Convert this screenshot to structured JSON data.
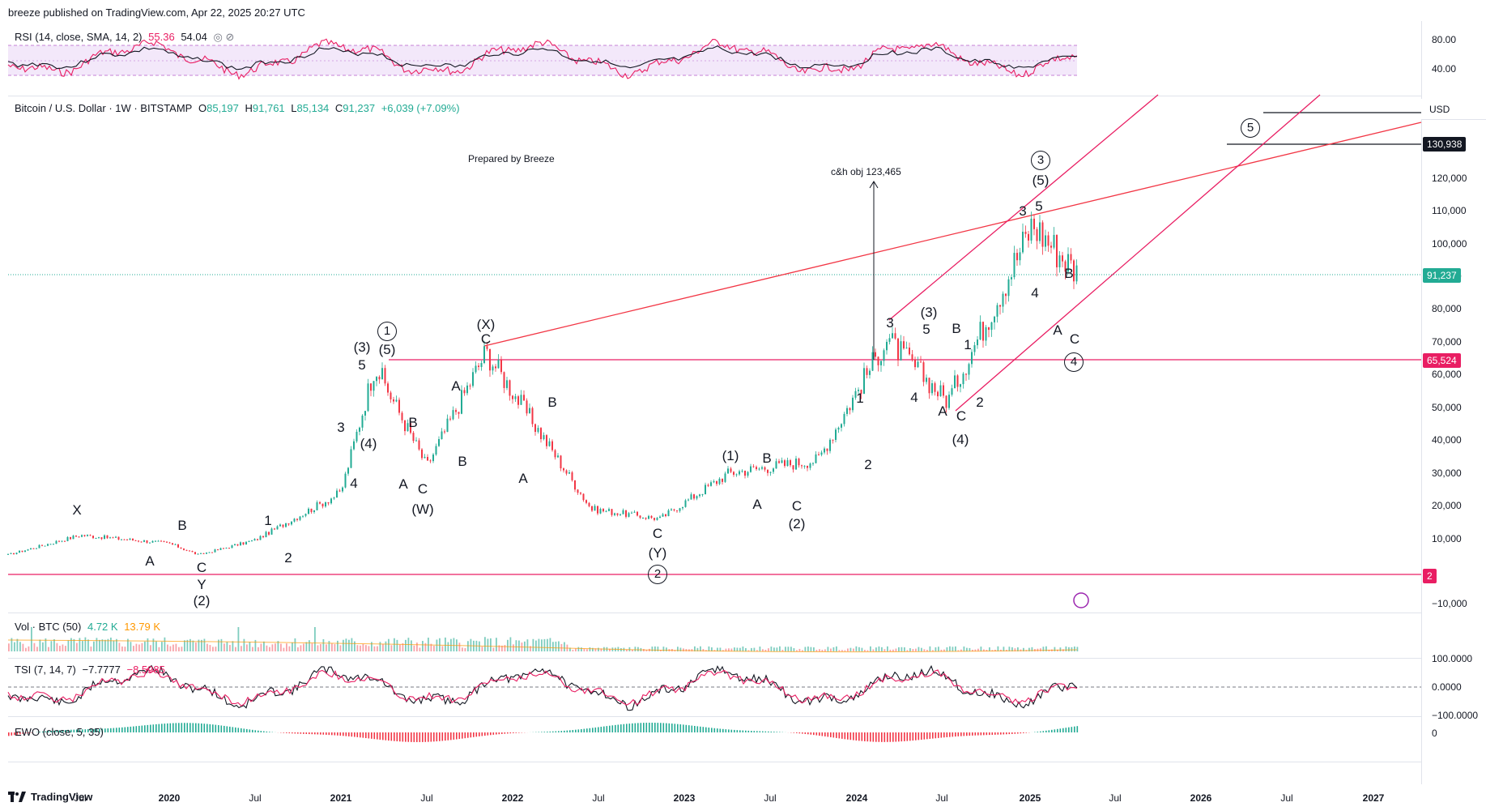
{
  "header": {
    "published": "breeze published on TradingView.com, Apr 22, 2025 20:27 UTC"
  },
  "rsi": {
    "label": "RSI (14, close, SMA, 14, 2)",
    "value": "55.36",
    "sma": "54.04",
    "icons": "◎ ⊘",
    "ticks": [
      "80.00",
      "40.00"
    ]
  },
  "main": {
    "symbol": "Bitcoin / U.S. Dollar · 1W · BITSTAMP",
    "o": "85,197",
    "h": "91,761",
    "l": "85,134",
    "c": "91,237",
    "change": "+6,039 (+7.09%)",
    "currency": "USD",
    "price_ticks": [
      "120,000",
      "110,000",
      "100,000",
      "90,000",
      "80,000",
      "70,000",
      "60,000",
      "50,000",
      "40,000",
      "30,000",
      "20,000",
      "10,000",
      "−10,000"
    ],
    "tag_130938": "130,938",
    "tag_91237": "91,237",
    "tag_65524": "65,524",
    "tag_2": "2",
    "note_prepared": "Prepared by Breeze",
    "note_ch": "c&h obj 123,465"
  },
  "volume": {
    "label": "Vol · BTC (50)",
    "v1": "4.72 K",
    "v2": "13.79 K"
  },
  "tsi": {
    "label": "TSI (7, 14, 7)",
    "v1": "−7.7777",
    "v2": "−8.5985",
    "ticks": [
      "100.0000",
      "0.0000",
      "−100.0000"
    ]
  },
  "ewo": {
    "label": "EWO (close, 5, 35)",
    "ticks": [
      "0"
    ]
  },
  "xaxis": [
    {
      "t": "Jul",
      "b": false
    },
    {
      "t": "2020",
      "b": true
    },
    {
      "t": "Jul",
      "b": false
    },
    {
      "t": "2021",
      "b": true
    },
    {
      "t": "Jul",
      "b": false
    },
    {
      "t": "2022",
      "b": true
    },
    {
      "t": "Jul",
      "b": false
    },
    {
      "t": "2023",
      "b": true
    },
    {
      "t": "Jul",
      "b": false
    },
    {
      "t": "2024",
      "b": true
    },
    {
      "t": "Jul",
      "b": false
    },
    {
      "t": "2025",
      "b": true
    },
    {
      "t": "Jul",
      "b": false
    },
    {
      "t": "2026",
      "b": true
    },
    {
      "t": "Jul",
      "b": false
    },
    {
      "t": "2027",
      "b": true
    }
  ],
  "footer": {
    "brand": "TradingView"
  },
  "waves": [
    {
      "t": "X"
    },
    {
      "t": "A"
    },
    {
      "t": "B"
    },
    {
      "t": "C"
    },
    {
      "t": "Y"
    },
    {
      "t": "(2)"
    },
    {
      "t": "1"
    },
    {
      "t": "2"
    },
    {
      "t": "3"
    },
    {
      "t": "4"
    },
    {
      "t": "(3)"
    },
    {
      "t": "5"
    },
    {
      "t": "(4)"
    },
    {
      "t": "1",
      "circle": true
    },
    {
      "t": "(5)"
    },
    {
      "t": "A"
    },
    {
      "t": "B"
    },
    {
      "t": "C"
    },
    {
      "t": "(W)"
    },
    {
      "t": "A"
    },
    {
      "t": "B"
    },
    {
      "t": "(X)"
    },
    {
      "t": "C"
    },
    {
      "t": "A"
    },
    {
      "t": "B"
    },
    {
      "t": "C"
    },
    {
      "t": "(Y)"
    },
    {
      "t": "2",
      "circle": true
    },
    {
      "t": "(1)"
    },
    {
      "t": "A"
    },
    {
      "t": "B"
    },
    {
      "t": "C"
    },
    {
      "t": "(2)"
    },
    {
      "t": "1"
    },
    {
      "t": "2"
    },
    {
      "t": "3"
    },
    {
      "t": "4"
    },
    {
      "t": "(3)"
    },
    {
      "t": "5"
    },
    {
      "t": "A"
    },
    {
      "t": "B"
    },
    {
      "t": "1"
    },
    {
      "t": "C"
    },
    {
      "t": "2"
    },
    {
      "t": "(4)"
    },
    {
      "t": "3"
    },
    {
      "t": "5"
    },
    {
      "t": "(5)"
    },
    {
      "t": "3",
      "circle": true
    },
    {
      "t": "4"
    },
    {
      "t": "A"
    },
    {
      "t": "B"
    },
    {
      "t": "C"
    },
    {
      "t": "4",
      "circle": true
    },
    {
      "t": "5",
      "circle": true
    }
  ],
  "chart_data": {
    "type": "line",
    "x": [
      "2019-04",
      "2019-07",
      "2020-01",
      "2020-03",
      "2020-07",
      "2020-12",
      "2021-04",
      "2021-07",
      "2021-11",
      "2022-06",
      "2022-11",
      "2023-04",
      "2023-10",
      "2024-03",
      "2024-08",
      "2024-12",
      "2025-01",
      "2025-04"
    ],
    "series": [
      {
        "values": [
          5000,
          11000,
          8500,
          5000,
          9500,
          24000,
          63000,
          32000,
          67000,
          19000,
          16000,
          30000,
          34000,
          71000,
          52000,
          99000,
          106000,
          91237
        ]
      }
    ],
    "ylim": [
      -10000,
      140000
    ],
    "color_up": "#22ab94",
    "color_down": "#f23645",
    "line_color": "#f23645",
    "channel_color": "#e91e63"
  }
}
